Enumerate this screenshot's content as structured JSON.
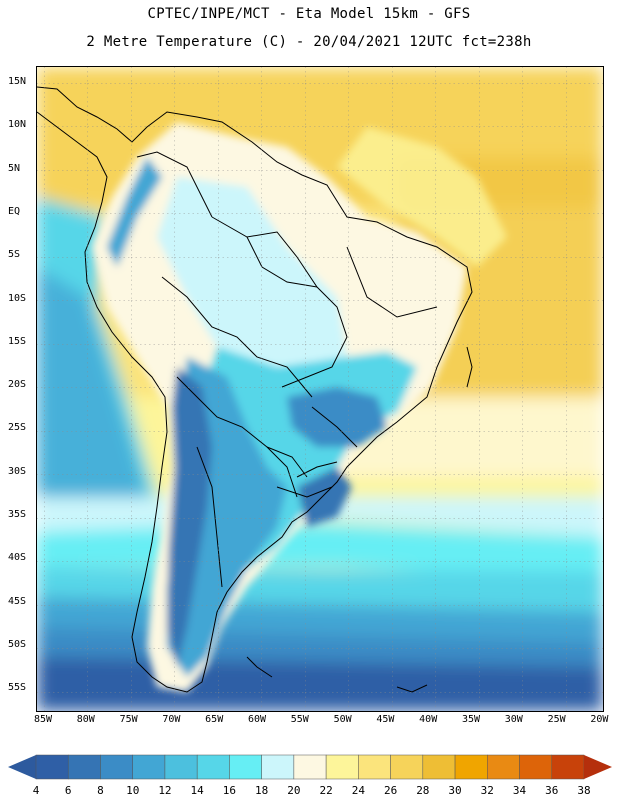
{
  "header": {
    "line1": "CPTEC/INPE/MCT -  Eta Model 15km - GFS",
    "line2": "2 Metre Temperature (C) - 20/04/2021 12UTC fct=238h"
  },
  "axes": {
    "lat_ticks": [
      "15N",
      "10N",
      "5N",
      "EQ",
      "5S",
      "10S",
      "15S",
      "20S",
      "25S",
      "30S",
      "35S",
      "40S",
      "45S",
      "50S",
      "55S"
    ],
    "lon_ticks": [
      "85W",
      "80W",
      "75W",
      "70W",
      "65W",
      "60W",
      "55W",
      "50W",
      "45W",
      "40W",
      "35W",
      "30W",
      "25W",
      "20W"
    ]
  },
  "colorbar": {
    "labels": [
      "4",
      "6",
      "8",
      "10",
      "12",
      "14",
      "16",
      "18",
      "20",
      "22",
      "24",
      "26",
      "28",
      "30",
      "32",
      "34",
      "36",
      "38"
    ],
    "colors": [
      "#2f5fa6",
      "#3574b4",
      "#3b8cc6",
      "#42a6d4",
      "#4cc0de",
      "#56d6e8",
      "#66eef4",
      "#ccf6fb",
      "#fdf8e2",
      "#fdf59a",
      "#fbe47c",
      "#f6d35a",
      "#eebe35",
      "#f0a500",
      "#e98a13",
      "#dd6409",
      "#c8420a"
    ],
    "low_arrow_color": "#2d5a9e",
    "high_arrow_color": "#b52f0c"
  }
}
